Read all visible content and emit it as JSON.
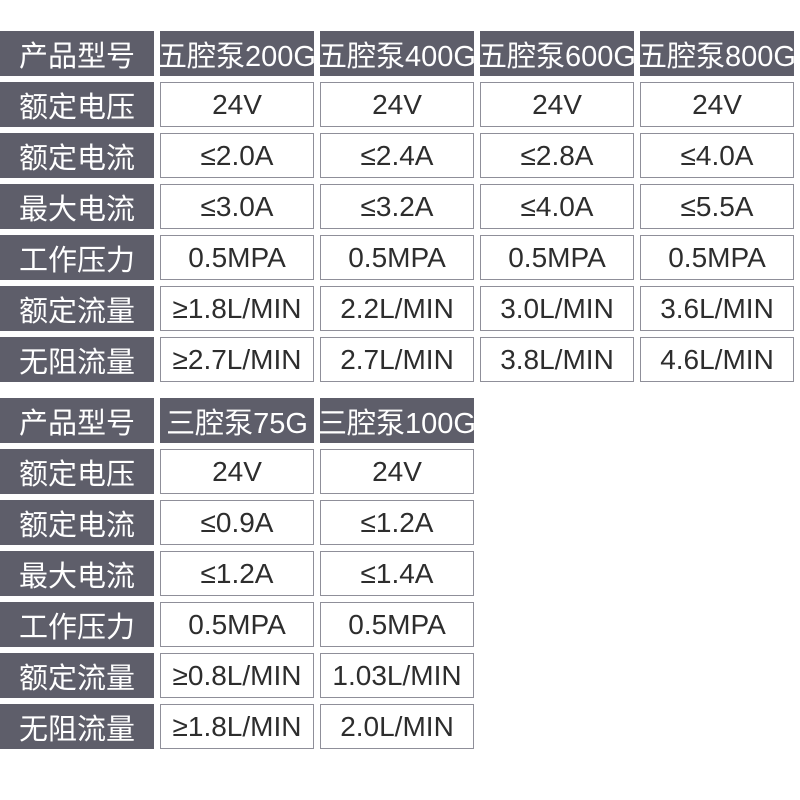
{
  "colors": {
    "header_bg": "#5e5e6a",
    "header_text": "#ffffff",
    "cell_border": "#8f8f99",
    "cell_text": "#2d2d2d",
    "page_bg": "#ffffff"
  },
  "tables": [
    {
      "name": "five-chamber-pump-specs",
      "header": [
        "产品型号",
        "五腔泵200G",
        "五腔泵400G",
        "五腔泵600G",
        "五腔泵800G"
      ],
      "rows": [
        {
          "label": "额定电压",
          "values": [
            "24V",
            "24V",
            "24V",
            "24V"
          ]
        },
        {
          "label": "额定电流",
          "values": [
            "≤2.0A",
            "≤2.4A",
            "≤2.8A",
            "≤4.0A"
          ]
        },
        {
          "label": "最大电流",
          "values": [
            "≤3.0A",
            "≤3.2A",
            "≤4.0A",
            "≤5.5A"
          ]
        },
        {
          "label": "工作压力",
          "values": [
            "0.5MPA",
            "0.5MPA",
            "0.5MPA",
            "0.5MPA"
          ]
        },
        {
          "label": "额定流量",
          "values": [
            "≥1.8L/MIN",
            "2.2L/MIN",
            "3.0L/MIN",
            "3.6L/MIN"
          ]
        },
        {
          "label": "无阻流量",
          "values": [
            "≥2.7L/MIN",
            "2.7L/MIN",
            "3.8L/MIN",
            "4.6L/MIN"
          ]
        }
      ]
    },
    {
      "name": "three-chamber-pump-specs",
      "header": [
        "产品型号",
        "三腔泵75G",
        "三腔泵100G"
      ],
      "rows": [
        {
          "label": "额定电压",
          "values": [
            "24V",
            "24V"
          ]
        },
        {
          "label": "额定电流",
          "values": [
            "≤0.9A",
            "≤1.2A"
          ]
        },
        {
          "label": "最大电流",
          "values": [
            "≤1.2A",
            "≤1.4A"
          ]
        },
        {
          "label": "工作压力",
          "values": [
            "0.5MPA",
            "0.5MPA"
          ]
        },
        {
          "label": "额定流量",
          "values": [
            "≥0.8L/MIN",
            "1.03L/MIN"
          ]
        },
        {
          "label": "无阻流量",
          "values": [
            "≥1.8L/MIN",
            "2.0L/MIN"
          ]
        }
      ]
    }
  ]
}
